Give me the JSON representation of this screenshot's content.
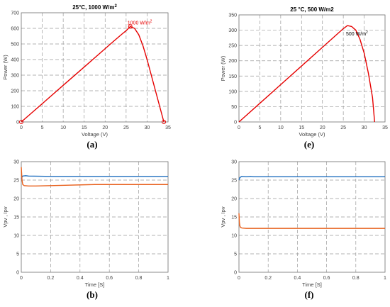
{
  "chart_data": [
    {
      "panel_label": "(a)",
      "type": "line",
      "title": "25°C, 1000 W/m",
      "title_sup": "2",
      "xlabel": "Voltage (V)",
      "ylabel": "Power (W)",
      "xlim": [
        0,
        35
      ],
      "ylim": [
        0,
        700
      ],
      "xticks": [
        0,
        5,
        10,
        15,
        20,
        25,
        30,
        35
      ],
      "yticks": [
        0,
        100,
        200,
        300,
        400,
        500,
        600,
        700
      ],
      "grid": true,
      "series": [
        {
          "color": "#e60000",
          "x": [
            0,
            5,
            10,
            15,
            20,
            22,
            24,
            25,
            26,
            27,
            28,
            29,
            30,
            31,
            32,
            33,
            33.5,
            34
          ],
          "y": [
            0,
            117,
            235,
            352,
            470,
            517,
            563,
            585,
            612,
            600,
            560,
            490,
            400,
            300,
            200,
            100,
            50,
            0
          ]
        }
      ],
      "markers": [
        {
          "x": 0,
          "y": 0
        },
        {
          "x": 26,
          "y": 612
        },
        {
          "x": 34,
          "y": 0
        }
      ],
      "annotations": [
        {
          "text": "1000 W/m",
          "sup": "2",
          "x": 26,
          "y": 612,
          "color": "#e60000"
        }
      ]
    },
    {
      "panel_label": "(e)",
      "type": "line",
      "title": "25 °C, 500 W/m2",
      "xlabel": "Voltage (V)",
      "ylabel": "Power (W)",
      "xlim": [
        0,
        35
      ],
      "ylim": [
        0,
        350
      ],
      "xticks": [
        0,
        5,
        10,
        15,
        20,
        25,
        30,
        35
      ],
      "yticks": [
        0,
        50,
        100,
        150,
        200,
        250,
        300,
        350
      ],
      "grid": true,
      "series": [
        {
          "color": "#e60000",
          "x": [
            0,
            5,
            10,
            15,
            20,
            24,
            25,
            26,
            27,
            28,
            29,
            30,
            31,
            32,
            32.5
          ],
          "y": [
            0,
            61,
            122,
            183,
            244,
            293,
            305,
            315,
            312,
            300,
            270,
            225,
            160,
            80,
            0
          ]
        }
      ],
      "annotations": [
        {
          "text": "500 W/m",
          "sup": "2",
          "x": 26,
          "y": 315,
          "color": "#000000"
        }
      ]
    },
    {
      "panel_label": "(b)",
      "type": "line",
      "title": "",
      "xlabel": "Time [S]",
      "ylabel": "Vpv , Ipv",
      "xlim": [
        0,
        1
      ],
      "ylim": [
        0,
        30
      ],
      "xticks": [
        0,
        0.2,
        0.4,
        0.6,
        0.8,
        1
      ],
      "yticks": [
        0,
        5,
        10,
        15,
        20,
        25,
        30
      ],
      "grid": true,
      "series": [
        {
          "color": "#1f6fbf",
          "x": [
            0,
            0.005,
            0.01,
            0.03,
            0.05,
            0.2,
            0.5,
            0.8,
            1
          ],
          "y": [
            25.3,
            25.8,
            26.1,
            26.2,
            26.1,
            26.0,
            26.0,
            26.0,
            26.0
          ]
        },
        {
          "color": "#e8601c",
          "x": [
            0,
            0.005,
            0.01,
            0.02,
            0.05,
            0.1,
            0.3,
            0.5,
            0.7,
            1
          ],
          "y": [
            28.5,
            25.0,
            23.8,
            23.5,
            23.4,
            23.4,
            23.6,
            23.8,
            23.8,
            23.8
          ]
        }
      ]
    },
    {
      "panel_label": "(f)",
      "type": "line",
      "title": "",
      "xlabel": "Time [S]",
      "ylabel": "Vpv , Ipv",
      "xlim": [
        0,
        1
      ],
      "ylim": [
        0,
        30
      ],
      "xticks": [
        0,
        0.2,
        0.4,
        0.6,
        0.8,
        1
      ],
      "yticks": [
        0,
        5,
        10,
        15,
        20,
        25,
        30
      ],
      "grid": true,
      "series": [
        {
          "color": "#1f6fbf",
          "x": [
            0,
            0.005,
            0.01,
            0.02,
            0.05,
            0.08,
            0.1,
            0.3,
            0.6,
            1
          ],
          "y": [
            25.0,
            25.6,
            25.8,
            26.0,
            25.9,
            26.0,
            25.9,
            25.9,
            25.9,
            25.9
          ]
        },
        {
          "color": "#e8601c",
          "x": [
            0,
            0.003,
            0.006,
            0.01,
            0.02,
            0.05,
            0.1,
            0.5,
            1
          ],
          "y": [
            16.0,
            13.5,
            12.6,
            12.2,
            12.0,
            11.9,
            11.9,
            11.9,
            11.9
          ]
        }
      ]
    }
  ]
}
